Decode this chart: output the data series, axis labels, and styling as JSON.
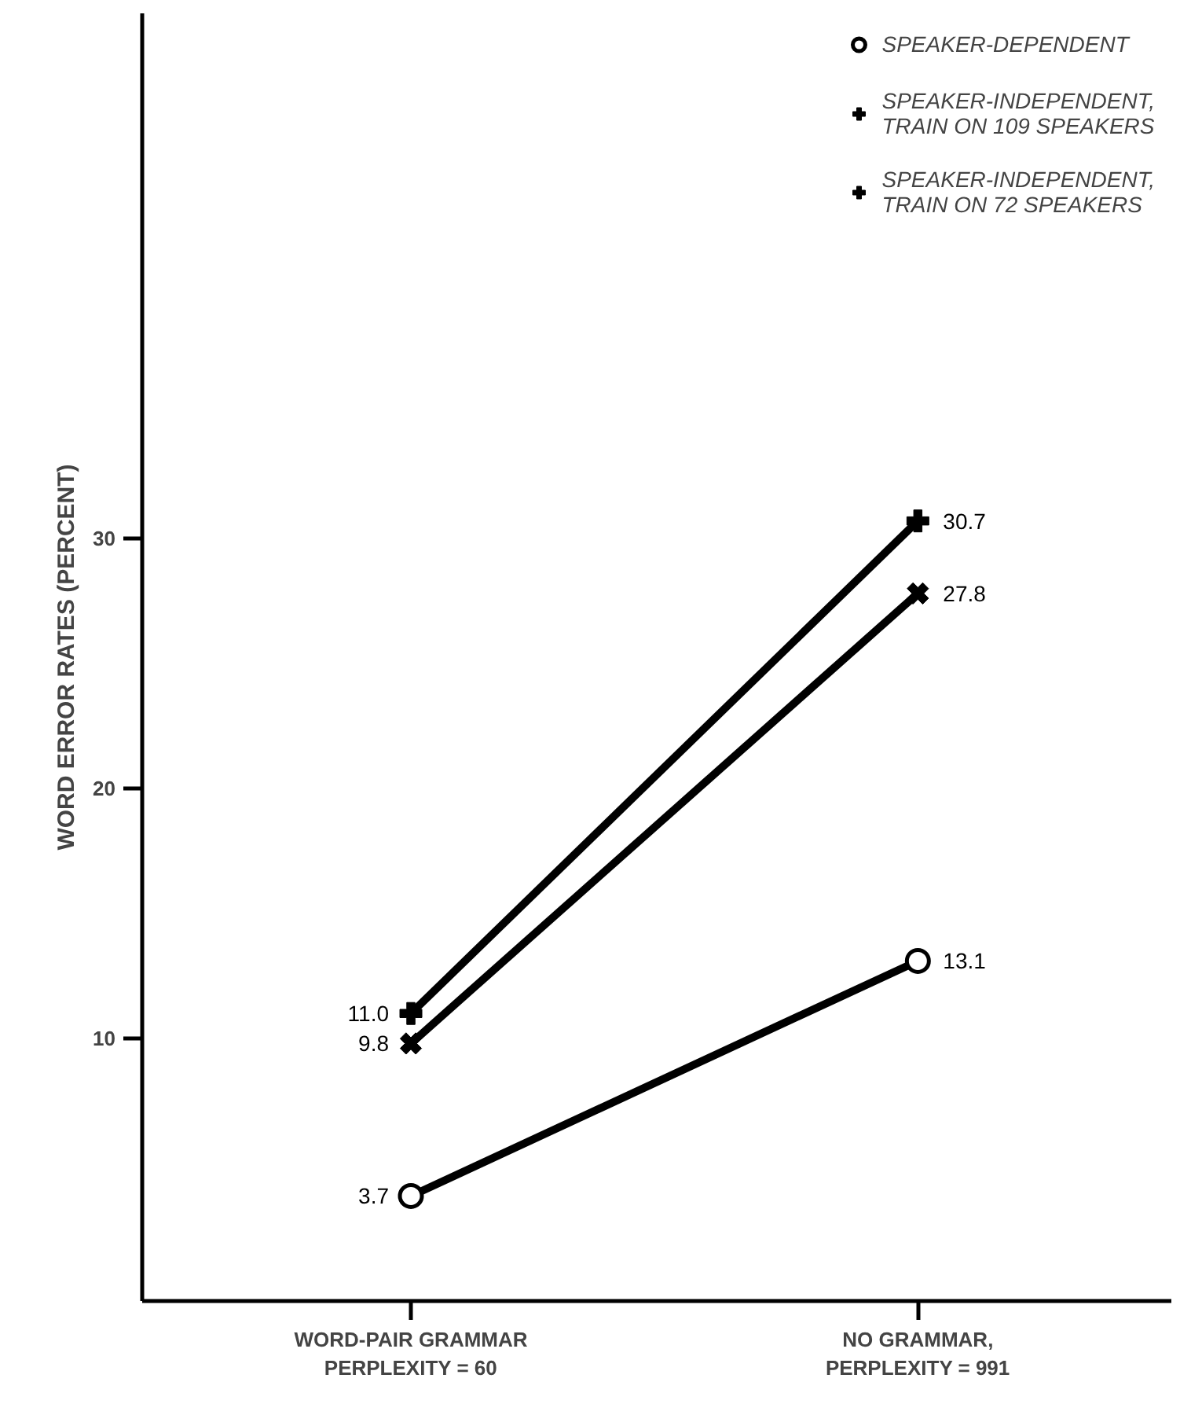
{
  "chart_data": {
    "type": "line",
    "ylabel": "WORD ERROR RATES (PERCENT)",
    "categories": [
      "WORD-PAIR GRAMMAR\nPERPLEXITY = 60",
      "NO GRAMMAR,\nPERPLEXITY = 991"
    ],
    "series": [
      {
        "name": "SPEAKER-DEPENDENT",
        "color": "#000000",
        "values": [
          3.7,
          13.1
        ],
        "value_labels": [
          "3.7",
          "13.1"
        ],
        "marker": "circle"
      },
      {
        "name": "SPEAKER-INDEPENDENT,\nTRAIN ON 109 SPEAKERS",
        "color": "#000000",
        "values": [
          9.8,
          27.8
        ],
        "value_labels": [
          "9.8",
          "27.8"
        ],
        "marker": "cross"
      },
      {
        "name": "SPEAKER-INDEPENDENT,\nTRAIN ON 72 SPEAKERS",
        "color": "#000000",
        "values": [
          11.0,
          30.7
        ],
        "value_labels": [
          "11.0",
          "30.7"
        ],
        "marker": "plus"
      }
    ],
    "ylim": [
      -0.5,
      51
    ],
    "yticks": [
      10,
      20,
      30
    ],
    "grid": false,
    "legend": "top right",
    "line_style": "solid"
  }
}
